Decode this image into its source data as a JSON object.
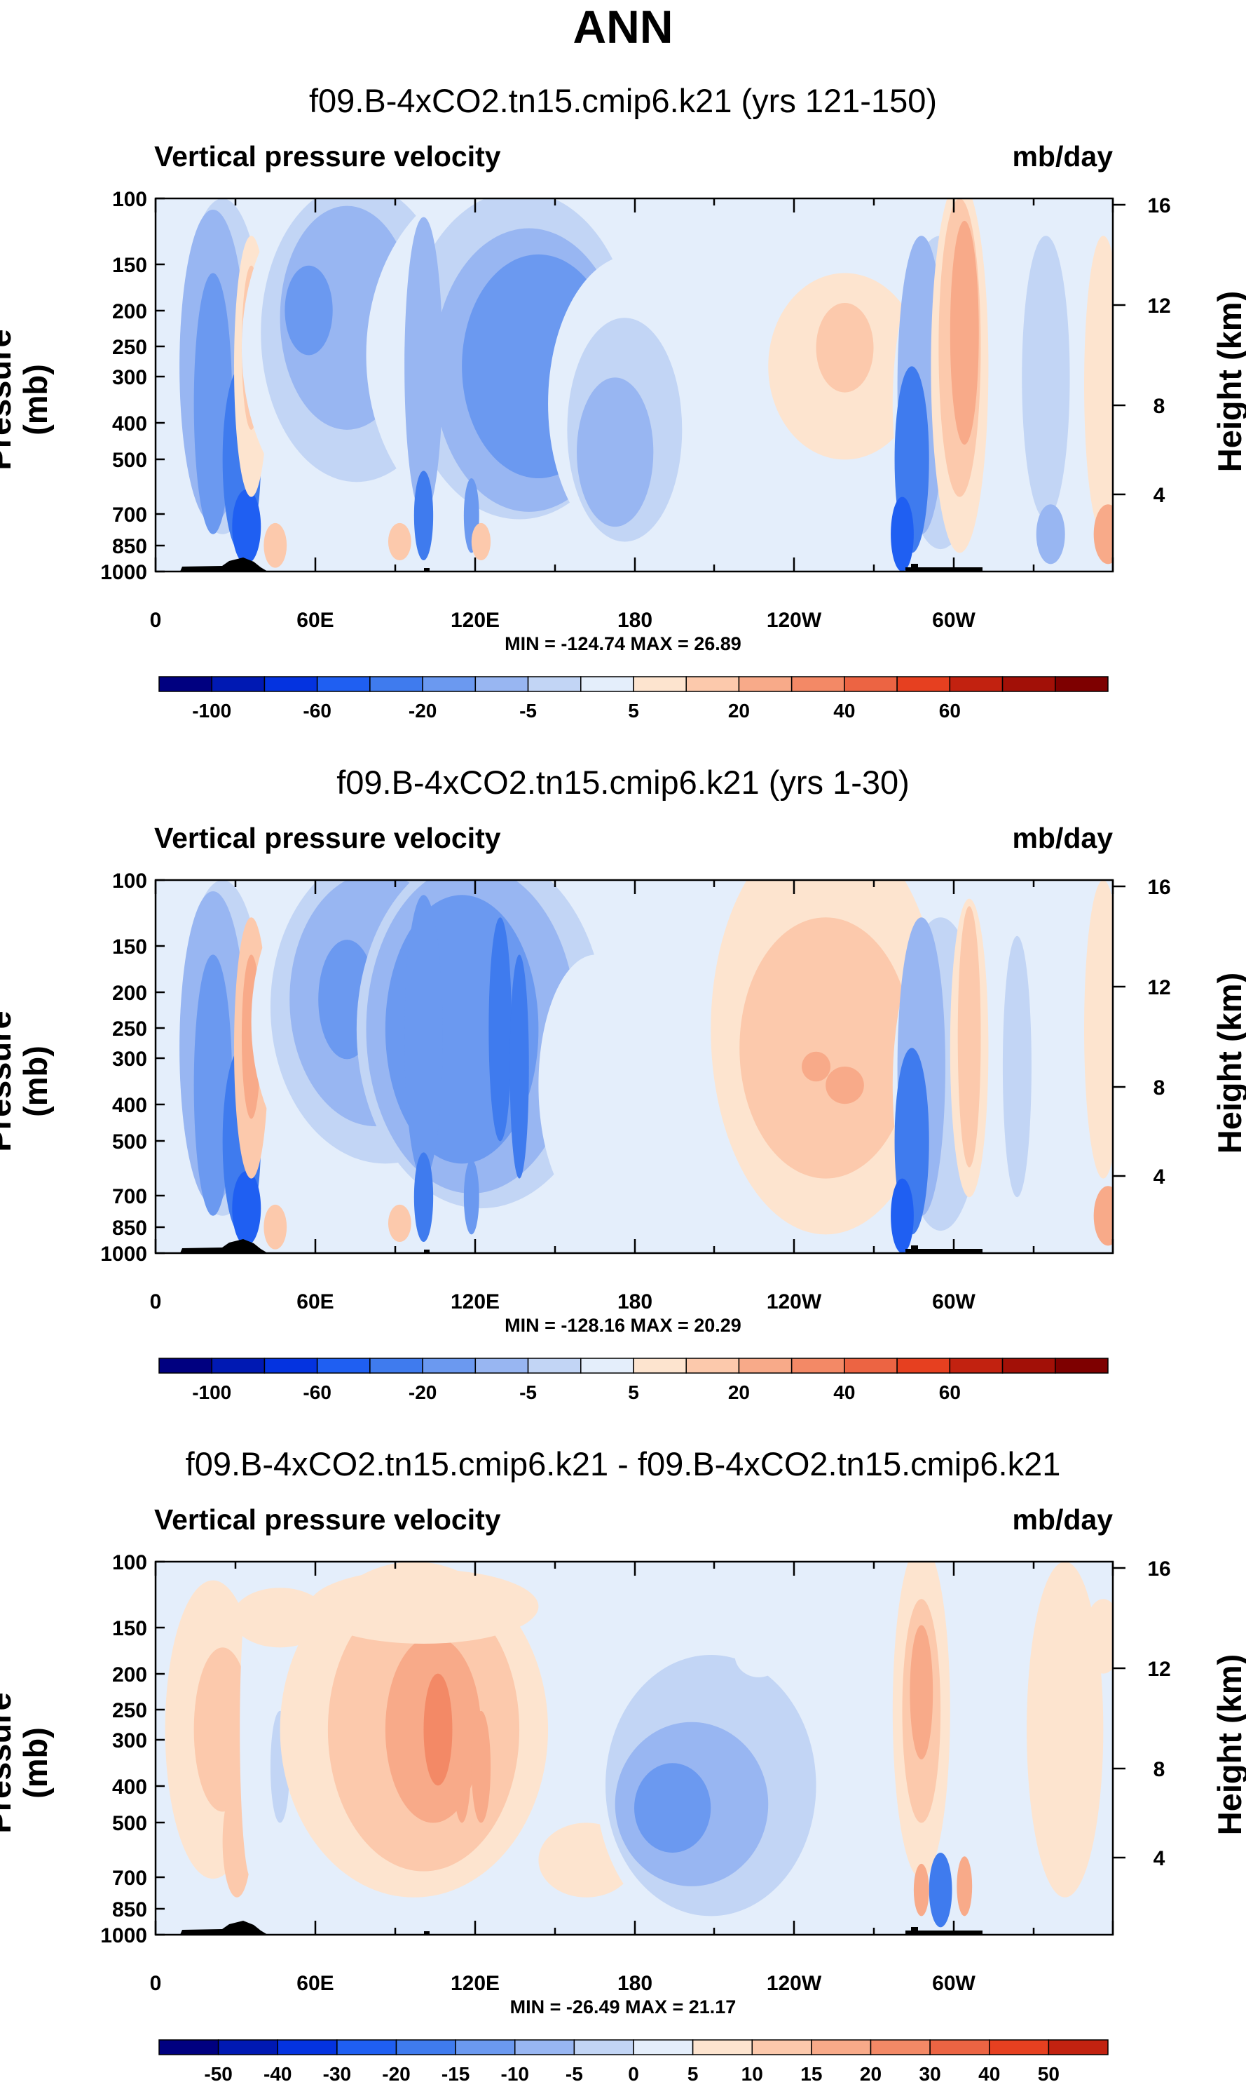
{
  "page_title": "ANN",
  "chart_data": [
    {
      "type": "heatmap",
      "title": "f09.B-4xCO2.tn15.cmip6.k21 (yrs 121-150)",
      "left_header": "Vertical pressure velocity",
      "right_header": "mb/day",
      "ylabel": "Pressure (mb)",
      "ylabel_right": "Height (km)",
      "y_ticks": [
        "100",
        "150",
        "200",
        "250",
        "300",
        "400",
        "500",
        "700",
        "850",
        "1000"
      ],
      "y_right_ticks": [
        "16",
        "12",
        "8",
        "4"
      ],
      "x_tick_labels": [
        "0",
        "60E",
        "120E",
        "180",
        "120W",
        "60W"
      ],
      "min_max": "MIN = -124.74   MAX =  26.89",
      "colorbar_labels": [
        "-100",
        "-60",
        "-20",
        "-5",
        "5",
        "20",
        "40",
        "60"
      ],
      "colorbar_colors": [
        "#000080",
        "#0019b3",
        "#0433e0",
        "#1f5ff2",
        "#3f7bee",
        "#6b99f0",
        "#98b6f2",
        "#c2d5f5",
        "#e4eefb",
        "#fde4cf",
        "#fcc9ac",
        "#f8aa89",
        "#f38966",
        "#ec6443",
        "#e64020",
        "#c22210",
        "#a21007",
        "#7e0000"
      ]
    },
    {
      "type": "heatmap",
      "title": "f09.B-4xCO2.tn15.cmip6.k21 (yrs 1-30)",
      "left_header": "Vertical pressure velocity",
      "right_header": "mb/day",
      "ylabel": "Pressure (mb)",
      "ylabel_right": "Height (km)",
      "y_ticks": [
        "100",
        "150",
        "200",
        "250",
        "300",
        "400",
        "500",
        "700",
        "850",
        "1000"
      ],
      "y_right_ticks": [
        "16",
        "12",
        "8",
        "4"
      ],
      "x_tick_labels": [
        "0",
        "60E",
        "120E",
        "180",
        "120W",
        "60W"
      ],
      "min_max": "MIN = -128.16   MAX =  20.29",
      "colorbar_labels": [
        "-100",
        "-60",
        "-20",
        "-5",
        "5",
        "20",
        "40",
        "60"
      ],
      "colorbar_colors": [
        "#000080",
        "#0019b3",
        "#0433e0",
        "#1f5ff2",
        "#3f7bee",
        "#6b99f0",
        "#98b6f2",
        "#c2d5f5",
        "#e4eefb",
        "#fde4cf",
        "#fcc9ac",
        "#f8aa89",
        "#f38966",
        "#ec6443",
        "#e64020",
        "#c22210",
        "#a21007",
        "#7e0000"
      ]
    },
    {
      "type": "heatmap",
      "title": "f09.B-4xCO2.tn15.cmip6.k21 - f09.B-4xCO2.tn15.cmip6.k21",
      "left_header": "Vertical pressure velocity",
      "right_header": "mb/day",
      "ylabel": "Pressure (mb)",
      "ylabel_right": "Height (km)",
      "y_ticks": [
        "100",
        "150",
        "200",
        "250",
        "300",
        "400",
        "500",
        "700",
        "850",
        "1000"
      ],
      "y_right_ticks": [
        "16",
        "12",
        "8",
        "4"
      ],
      "x_tick_labels": [
        "0",
        "60E",
        "120E",
        "180",
        "120W",
        "60W"
      ],
      "min_max": "MIN = -26.49   MAX =  21.17",
      "colorbar_labels": [
        "-50",
        "-40",
        "-30",
        "-20",
        "-15",
        "-10",
        "-5",
        "0",
        "5",
        "10",
        "15",
        "20",
        "30",
        "40",
        "50"
      ],
      "colorbar_colors": [
        "#000080",
        "#0019b3",
        "#0433e0",
        "#1f5ff2",
        "#3f7bee",
        "#6b99f0",
        "#98b6f2",
        "#c2d5f5",
        "#e4eefb",
        "#fde4cf",
        "#fcc9ac",
        "#f8aa89",
        "#f38966",
        "#ec6443",
        "#e64020",
        "#c22210"
      ]
    }
  ]
}
